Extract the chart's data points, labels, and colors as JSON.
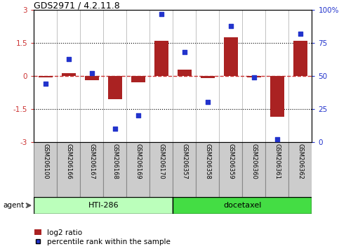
{
  "title": "GDS2971 / 4.2.11.8",
  "samples": [
    "GSM206100",
    "GSM206166",
    "GSM206167",
    "GSM206168",
    "GSM206169",
    "GSM206170",
    "GSM206357",
    "GSM206358",
    "GSM206359",
    "GSM206360",
    "GSM206361",
    "GSM206362"
  ],
  "log2_ratio": [
    -0.05,
    0.12,
    -0.2,
    -1.05,
    -0.3,
    1.6,
    0.3,
    -0.1,
    1.75,
    -0.08,
    -1.85,
    1.6
  ],
  "percentile": [
    44,
    63,
    52,
    10,
    20,
    97,
    68,
    30,
    88,
    49,
    2,
    82
  ],
  "group1_label": "HTI-286",
  "group2_label": "docetaxel",
  "group1_count": 6,
  "group2_count": 6,
  "ylim_left": [
    -3,
    3
  ],
  "ylim_right": [
    0,
    100
  ],
  "yticks_left": [
    -3,
    -1.5,
    0,
    1.5,
    3
  ],
  "ytick_labels_left": [
    "-3",
    "-1.5",
    "0",
    "1.5",
    "3"
  ],
  "yticks_right": [
    0,
    25,
    50,
    75,
    100
  ],
  "ytick_labels_right": [
    "0",
    "25",
    "50",
    "75",
    "100%"
  ],
  "bar_color": "#aa2222",
  "dot_color": "#2233cc",
  "hline_color": "#cc3333",
  "dotline_color": "black",
  "group1_color": "#bbffbb",
  "group2_color": "#44dd44",
  "label_bg_color": "#cccccc",
  "legend_bar_label": "log2 ratio",
  "legend_dot_label": "percentile rank within the sample",
  "agent_label": "agent",
  "bar_width": 0.6
}
